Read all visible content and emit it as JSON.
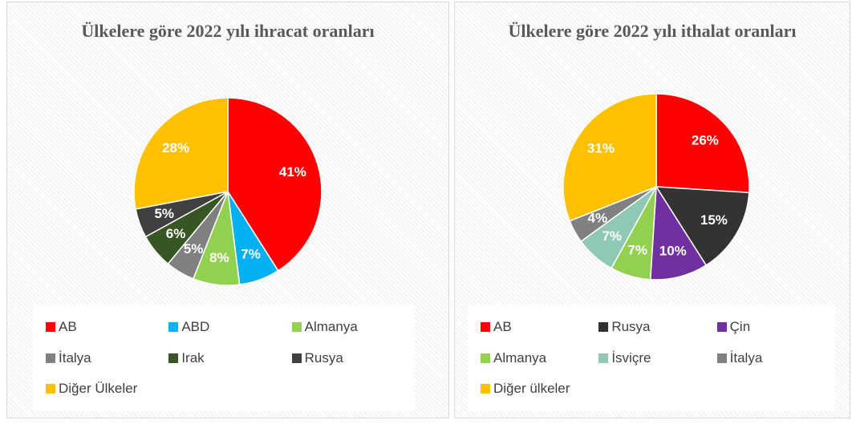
{
  "chart_data": [
    {
      "type": "pie",
      "title": "Ülkelere göre 2022 yılı ihracat oranları",
      "categories": [
        "AB",
        "ABD",
        "Almanya",
        "İtalya",
        "Irak",
        "Rusya",
        "Diğer Ülkeler"
      ],
      "values": [
        41,
        7,
        8,
        5,
        6,
        5,
        28
      ],
      "value_labels": [
        "41%",
        "7%",
        "8%",
        "5%",
        "6%",
        "5%",
        "28%"
      ],
      "colors": [
        "#ff0000",
        "#00b0f0",
        "#92d050",
        "#808080",
        "#375623",
        "#404040",
        "#ffc000"
      ]
    },
    {
      "type": "pie",
      "title": "Ülkelere göre 2022 yılı ithalat oranları",
      "categories": [
        "AB",
        "Rusya",
        "Çin",
        "Almanya",
        "İsviçre",
        "İtalya",
        "Diğer ülkeler"
      ],
      "values": [
        26,
        15,
        10,
        7,
        7,
        4,
        31
      ],
      "value_labels": [
        "26%",
        "15%",
        "10%",
        "7%",
        "7%",
        "4%",
        "31%"
      ],
      "colors": [
        "#ff0000",
        "#333333",
        "#7030a0",
        "#92d050",
        "#8fc9b5",
        "#808080",
        "#ffc000"
      ]
    }
  ]
}
